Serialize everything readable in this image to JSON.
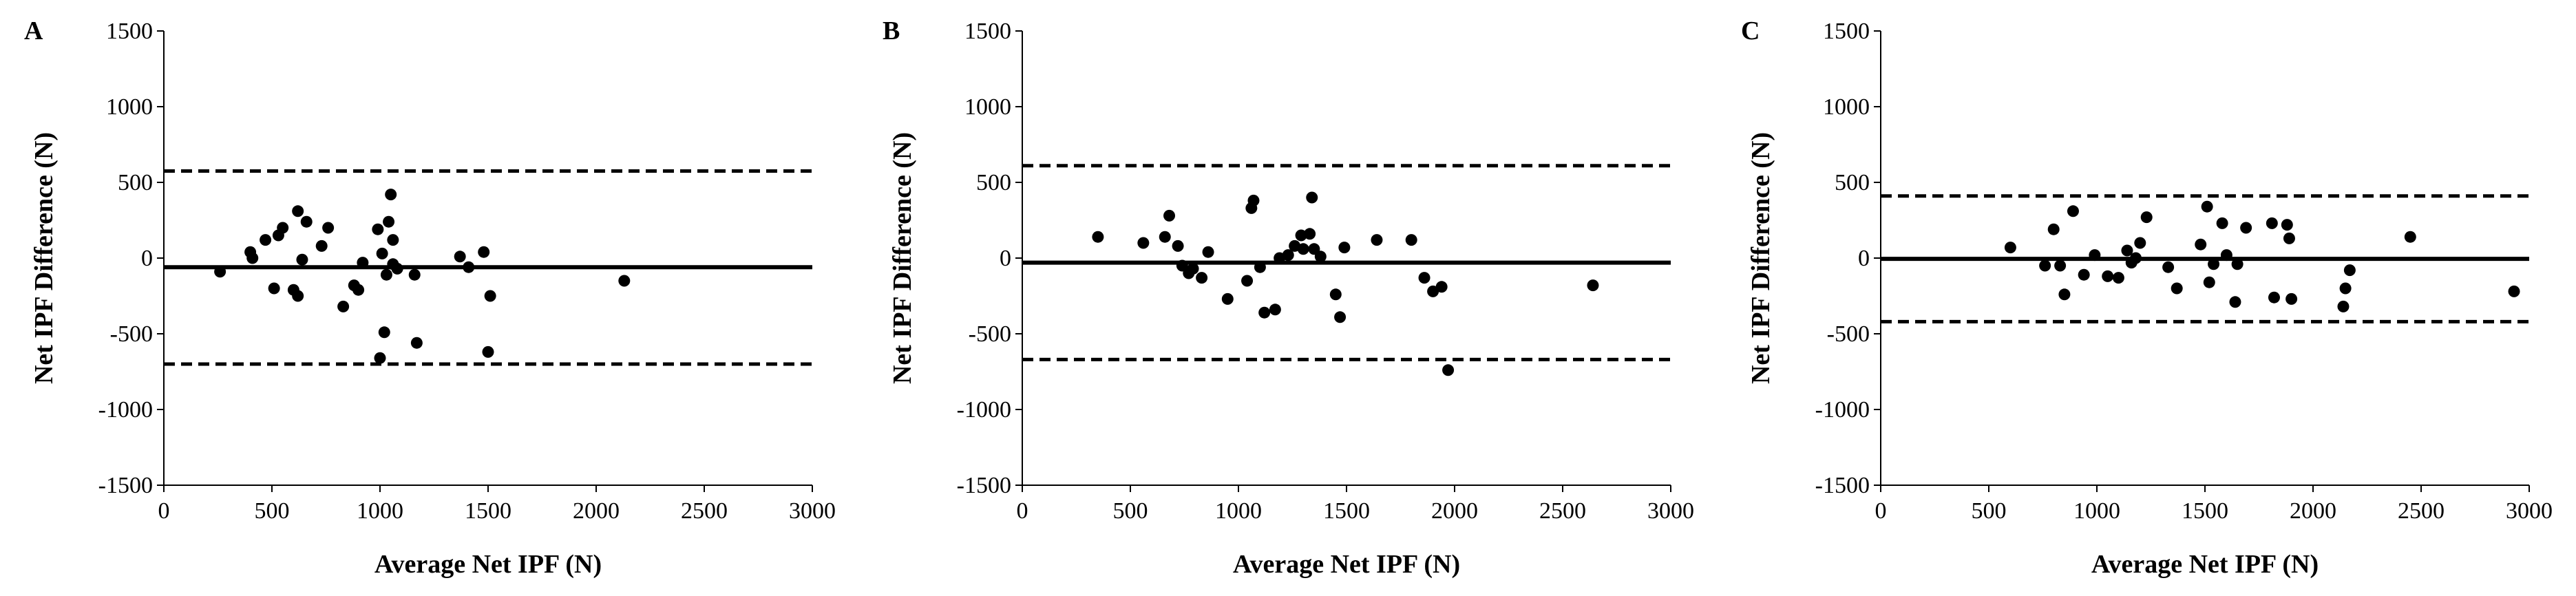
{
  "chart_data": [
    {
      "panel": "A",
      "type": "scatter",
      "xlabel": "Average Net IPF (N)",
      "ylabel": "Net IPF Difference (N)",
      "xlim": [
        0,
        3000
      ],
      "ylim": [
        -1500,
        1500
      ],
      "xticks": [
        0,
        500,
        1000,
        1500,
        2000,
        2500,
        3000
      ],
      "yticks": [
        -1500,
        -1000,
        -500,
        0,
        500,
        1000,
        1500
      ],
      "mean_line": -60,
      "upper_loa": 575,
      "lower_loa": -700,
      "points": [
        [
          260,
          -90
        ],
        [
          400,
          40
        ],
        [
          410,
          0
        ],
        [
          470,
          120
        ],
        [
          510,
          -200
        ],
        [
          530,
          150
        ],
        [
          550,
          200
        ],
        [
          600,
          -210
        ],
        [
          620,
          310
        ],
        [
          620,
          -250
        ],
        [
          640,
          -10
        ],
        [
          660,
          240
        ],
        [
          730,
          80
        ],
        [
          760,
          200
        ],
        [
          830,
          -320
        ],
        [
          880,
          -180
        ],
        [
          900,
          -210
        ],
        [
          920,
          -30
        ],
        [
          990,
          190
        ],
        [
          1000,
          -660
        ],
        [
          1010,
          30
        ],
        [
          1020,
          -490
        ],
        [
          1030,
          -110
        ],
        [
          1040,
          240
        ],
        [
          1050,
          420
        ],
        [
          1060,
          120
        ],
        [
          1060,
          -40
        ],
        [
          1080,
          -70
        ],
        [
          1160,
          -110
        ],
        [
          1170,
          -560
        ],
        [
          1370,
          10
        ],
        [
          1410,
          -60
        ],
        [
          1480,
          40
        ],
        [
          1500,
          -620
        ],
        [
          1510,
          -250
        ],
        [
          2130,
          -150
        ]
      ]
    },
    {
      "panel": "B",
      "type": "scatter",
      "xlabel": "Average Net IPF (N)",
      "ylabel": "Net IPF Difference (N)",
      "xlim": [
        0,
        3000
      ],
      "ylim": [
        -1500,
        1500
      ],
      "xticks": [
        0,
        500,
        1000,
        1500,
        2000,
        2500,
        3000
      ],
      "yticks": [
        -1500,
        -1000,
        -500,
        0,
        500,
        1000,
        1500
      ],
      "mean_line": -30,
      "upper_loa": 610,
      "lower_loa": -670,
      "points": [
        [
          350,
          140
        ],
        [
          560,
          100
        ],
        [
          660,
          140
        ],
        [
          680,
          280
        ],
        [
          720,
          80
        ],
        [
          740,
          -50
        ],
        [
          770,
          -100
        ],
        [
          790,
          -70
        ],
        [
          830,
          -130
        ],
        [
          860,
          40
        ],
        [
          950,
          -270
        ],
        [
          1040,
          -150
        ],
        [
          1060,
          330
        ],
        [
          1070,
          380
        ],
        [
          1100,
          -60
        ],
        [
          1120,
          -360
        ],
        [
          1170,
          -340
        ],
        [
          1190,
          0
        ],
        [
          1230,
          20
        ],
        [
          1260,
          80
        ],
        [
          1290,
          150
        ],
        [
          1300,
          60
        ],
        [
          1330,
          160
        ],
        [
          1340,
          400
        ],
        [
          1350,
          60
        ],
        [
          1380,
          10
        ],
        [
          1450,
          -240
        ],
        [
          1470,
          -390
        ],
        [
          1490,
          70
        ],
        [
          1640,
          120
        ],
        [
          1800,
          120
        ],
        [
          1860,
          -130
        ],
        [
          1900,
          -220
        ],
        [
          1940,
          -190
        ],
        [
          1970,
          -740
        ],
        [
          2640,
          -180
        ]
      ]
    },
    {
      "panel": "C",
      "type": "scatter",
      "xlabel": "Average Net IPF (N)",
      "ylabel": "Net IPF Difference (N)",
      "xlim": [
        0,
        3000
      ],
      "ylim": [
        -1500,
        1500
      ],
      "xticks": [
        0,
        500,
        1000,
        1500,
        2000,
        2500,
        3000
      ],
      "yticks": [
        -1500,
        -1000,
        -500,
        0,
        500,
        1000,
        1500
      ],
      "mean_line": -5,
      "upper_loa": 410,
      "lower_loa": -420,
      "points": [
        [
          600,
          70
        ],
        [
          760,
          -50
        ],
        [
          800,
          190
        ],
        [
          830,
          -50
        ],
        [
          850,
          -240
        ],
        [
          890,
          310
        ],
        [
          940,
          -110
        ],
        [
          990,
          20
        ],
        [
          1050,
          -120
        ],
        [
          1100,
          -130
        ],
        [
          1140,
          50
        ],
        [
          1160,
          -30
        ],
        [
          1180,
          0
        ],
        [
          1200,
          100
        ],
        [
          1230,
          270
        ],
        [
          1330,
          -60
        ],
        [
          1370,
          -200
        ],
        [
          1480,
          90
        ],
        [
          1510,
          340
        ],
        [
          1520,
          -160
        ],
        [
          1540,
          -40
        ],
        [
          1580,
          230
        ],
        [
          1600,
          20
        ],
        [
          1640,
          -290
        ],
        [
          1650,
          -40
        ],
        [
          1690,
          200
        ],
        [
          1810,
          230
        ],
        [
          1820,
          -260
        ],
        [
          1880,
          220
        ],
        [
          1890,
          130
        ],
        [
          1900,
          -270
        ],
        [
          2140,
          -320
        ],
        [
          2150,
          -200
        ],
        [
          2170,
          -80
        ],
        [
          2450,
          140
        ],
        [
          2930,
          -220
        ]
      ]
    }
  ]
}
